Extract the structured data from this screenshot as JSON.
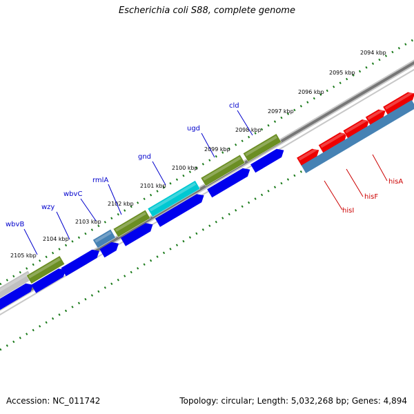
{
  "title": "Escherichia coli S88, complete genome",
  "footer": {
    "accession": "Accession: NC_011742",
    "topology": "Topology: circular; Length: 5,032,268 bp; Genes: 4,894"
  },
  "scale": {
    "labels": [
      "2094 kbp",
      "2095 kbp",
      "2096 kbp",
      "2097 kbp",
      "2098 kbp",
      "2099 kbp",
      "2100 kbp",
      "2101 kbp",
      "2102 kbp",
      "2103 kbp",
      "2104 kbp",
      "2105 kbp"
    ]
  },
  "gene_labels": [
    {
      "text": "wbvB",
      "color": "#0000cc"
    },
    {
      "text": "wzy",
      "color": "#0000cc"
    },
    {
      "text": "wbvC",
      "color": "#0000cc"
    },
    {
      "text": "rmlA",
      "color": "#0000cc"
    },
    {
      "text": "gnd",
      "color": "#0000cc"
    },
    {
      "text": "ugd",
      "color": "#0000cc"
    },
    {
      "text": "cld",
      "color": "#0000cc"
    },
    {
      "text": "hisA",
      "color": "#cc0000"
    },
    {
      "text": "hisF",
      "color": "#cc0000"
    },
    {
      "text": "hisI",
      "color": "#cc0000"
    }
  ],
  "colors": {
    "backbone": "#808080",
    "tick": "#1a7a1a",
    "cds": "#0000ee",
    "gene_olive": "#6b8e23",
    "gene_cyan": "#00c8d2",
    "gene_steel": "#4682b4",
    "gene_red": "#ee0000",
    "gene_gray": "#c0c0c0"
  }
}
